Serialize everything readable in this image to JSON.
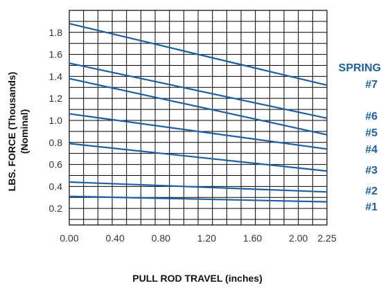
{
  "colors": {
    "series": "#1b5fa5",
    "grid": "#000000",
    "text": "#333333"
  },
  "chart_data": {
    "type": "line",
    "xlabel": "PULL ROD TRAVEL (inches)",
    "ylabel": "LBS. FORCE (Thousands)",
    "ylabel_sub": "(Nominal)",
    "legend_header": "SPRING",
    "xlim": [
      0,
      2.25
    ],
    "ylim": [
      0.05,
      2.0
    ],
    "x_ticks": [
      0,
      0.4,
      0.8,
      1.2,
      1.6,
      2.0,
      2.25
    ],
    "x_tick_labels": [
      "0.00",
      "0.40",
      "0.80",
      "1.20",
      "1.60",
      "2.00",
      "2.25"
    ],
    "y_ticks": [
      0.2,
      0.4,
      0.6,
      0.8,
      1.0,
      1.2,
      1.4,
      1.6,
      1.8
    ],
    "y_tick_labels": [
      "0.2",
      "0.4",
      "0.6",
      "0.8",
      "1.0",
      "1.2",
      "1.4",
      "1.6",
      "1.8"
    ],
    "grid": true,
    "series": [
      {
        "name": "#1",
        "x": [
          0,
          2.25
        ],
        "y": [
          0.31,
          0.26
        ]
      },
      {
        "name": "#2",
        "x": [
          0,
          2.25
        ],
        "y": [
          0.44,
          0.35
        ]
      },
      {
        "name": "#3",
        "x": [
          0,
          2.25
        ],
        "y": [
          0.79,
          0.54
        ]
      },
      {
        "name": "#4",
        "x": [
          0,
          2.25
        ],
        "y": [
          1.06,
          0.74
        ]
      },
      {
        "name": "#5",
        "x": [
          0,
          2.25
        ],
        "y": [
          1.38,
          0.87
        ]
      },
      {
        "name": "#6",
        "x": [
          0,
          2.25
        ],
        "y": [
          1.52,
          1.02
        ]
      },
      {
        "name": "#7",
        "x": [
          0,
          2.25
        ],
        "y": [
          1.88,
          1.32
        ]
      }
    ]
  }
}
